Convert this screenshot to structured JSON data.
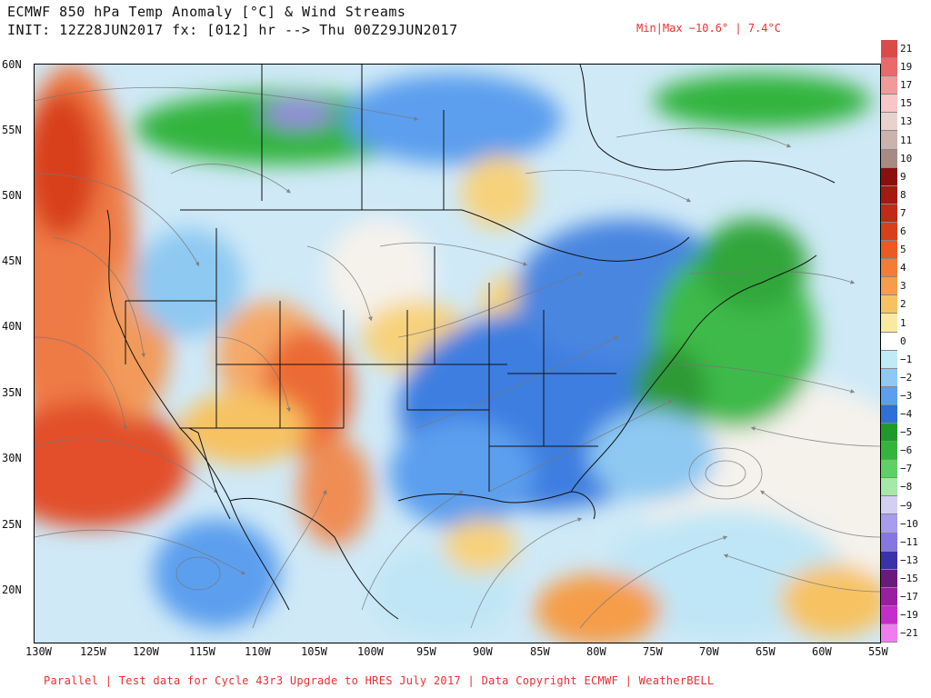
{
  "header": {
    "title_line1": "ECMWF 850 hPa Temp Anomaly [°C] & Wind Streams",
    "title_line2": "INIT: 12Z28JUN2017 fx: [012] hr --> Thu 00Z29JUN2017",
    "minmax": "Min|Max −10.6° | 7.4°C"
  },
  "footer": {
    "text": "Parallel | Test data for Cycle 43r3 Upgrade to HRES July 2017 | Data Copyright ECMWF | WeatherBELL"
  },
  "axes": {
    "lat_labels": [
      "60N",
      "55N",
      "50N",
      "45N",
      "40N",
      "35N",
      "30N",
      "25N",
      "20N"
    ],
    "lon_labels": [
      "130W",
      "125W",
      "120W",
      "115W",
      "110W",
      "105W",
      "100W",
      "95W",
      "90W",
      "85W",
      "80W",
      "75W",
      "70W",
      "65W",
      "60W",
      "55W"
    ]
  },
  "colorbar": {
    "labels": [
      "21",
      "19",
      "17",
      "15",
      "13",
      "11",
      "10",
      "9",
      "8",
      "7",
      "6",
      "5",
      "4",
      "3",
      "2",
      "1",
      "0",
      "−1",
      "−2",
      "−3",
      "−4",
      "−5",
      "−6",
      "−7",
      "−8",
      "−9",
      "−10",
      "−11",
      "−13",
      "−15",
      "−17",
      "−19",
      "−21"
    ],
    "colors": [
      "#d94b4b",
      "#e86a6a",
      "#f29a9a",
      "#f7c6c6",
      "#e8d3cc",
      "#c9b3ad",
      "#a88a82",
      "#8a1010",
      "#a41a12",
      "#c02a16",
      "#d8401c",
      "#ec5a24",
      "#f47c34",
      "#f59d48",
      "#f7c262",
      "#faeaa0",
      "#ffffff",
      "#bfeaf6",
      "#8ec9f2",
      "#5b9fee",
      "#2f6fd8",
      "#1f9a2a",
      "#33b43d",
      "#5fd066",
      "#a5e8a8",
      "#d3cff2",
      "#a89cec",
      "#8576e0",
      "#3b31a8",
      "#6a1a7a",
      "#9a1ea0",
      "#c62cc8",
      "#ee7ef0"
    ]
  },
  "colors": {
    "ocean_warm": "#e8643a",
    "neutral": "#f5f2ec",
    "cool_light": "#9dd3f2",
    "cool": "#4a86e0",
    "cold_green": "#3cba4a",
    "very_cold": "#9a86e4",
    "warm_light": "#f7d27c",
    "warm": "#ef8d54"
  }
}
